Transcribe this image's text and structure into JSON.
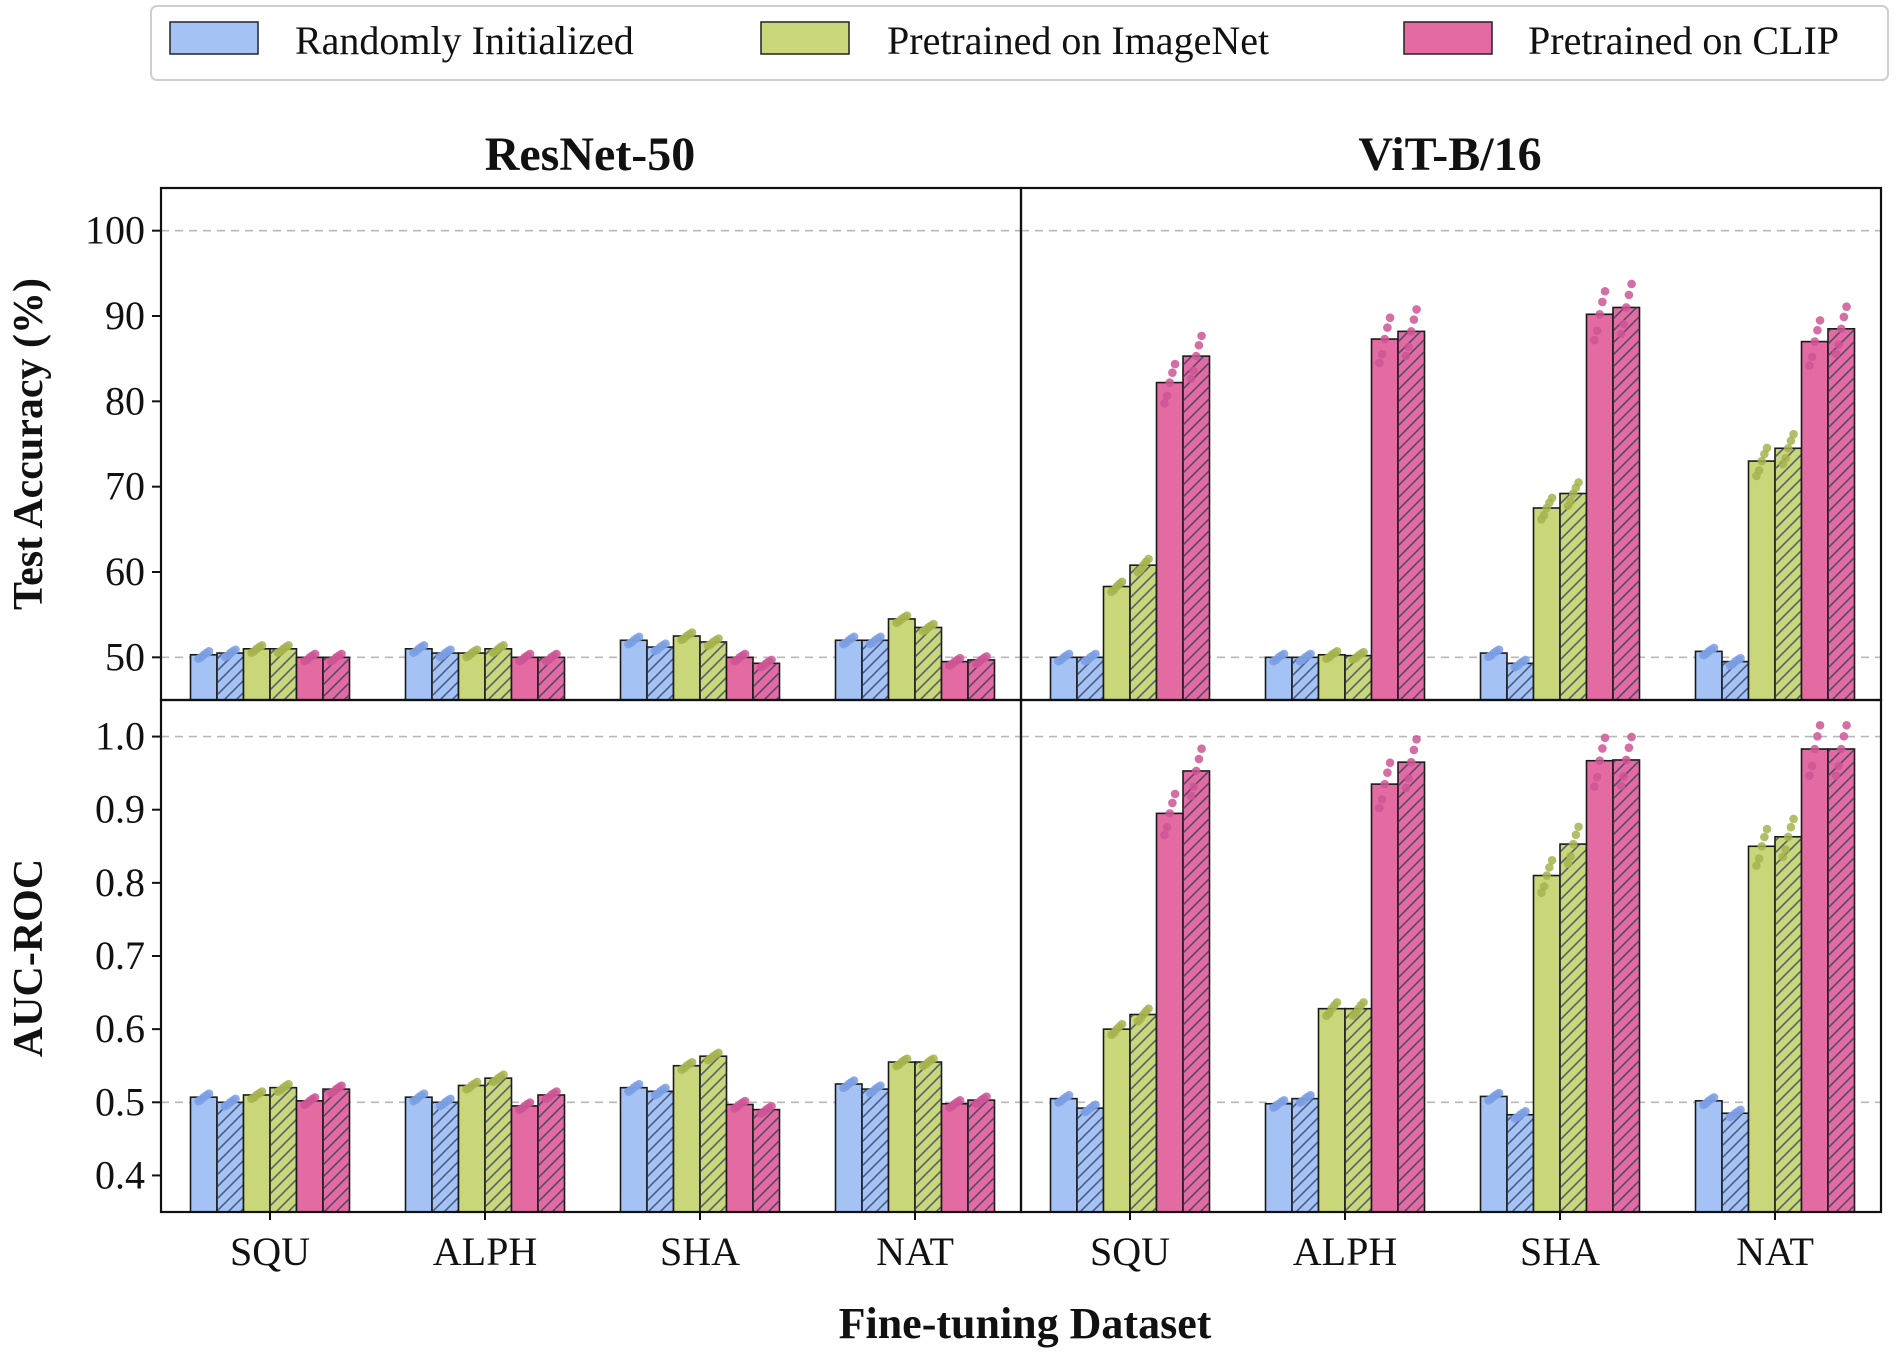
{
  "chart_data": {
    "type": "bar",
    "xlabel": "Fine-tuning Dataset",
    "categories": [
      "SQU",
      "ALPH",
      "SHA",
      "NAT"
    ],
    "legend": [
      {
        "name": "Randomly Initialized",
        "color": "#a4c2f4"
      },
      {
        "name": "Pretrained on ImageNet",
        "color": "#c9d67a"
      },
      {
        "name": "Pretrained on CLIP",
        "color": "#e46ba2"
      }
    ],
    "dot_colors": [
      "#7b9ee3",
      "#a6b34e",
      "#cc5595"
    ],
    "models": [
      "ResNet-50",
      "ViT-B/16"
    ],
    "metrics": [
      {
        "key": "acc",
        "ylabel": "Test Accuracy (%)",
        "ylim": [
          45,
          105
        ],
        "ticks": [
          50,
          60,
          70,
          80,
          90,
          100
        ],
        "tick_labels": [
          "50",
          "60",
          "70",
          "80",
          "90",
          "100"
        ],
        "ref_lines": [
          50,
          100
        ]
      },
      {
        "key": "auc",
        "ylabel": "AUC-ROC",
        "ylim": [
          0.35,
          1.05
        ],
        "ticks": [
          0.4,
          0.5,
          0.6,
          0.7,
          0.8,
          0.9,
          1.0
        ],
        "tick_labels": [
          "0.4",
          "0.5",
          "0.6",
          "0.7",
          "0.8",
          "0.9",
          "1.0"
        ],
        "ref_lines": [
          0.5,
          1.0
        ]
      }
    ],
    "note": "Each dataset has 6 bars: for each pretraining, a solid bar and a hatched bar. Values in data units.",
    "panels": {
      "ResNet-50": {
        "acc": {
          "SQU": [
            50.3,
            50.5,
            51.0,
            51.0,
            50.0,
            50.0
          ],
          "ALPH": [
            51.0,
            50.5,
            50.5,
            51.0,
            50.0,
            50.0
          ],
          "SHA": [
            52.0,
            51.2,
            52.5,
            51.8,
            50.0,
            49.3
          ],
          "NAT": [
            52.0,
            52.0,
            54.5,
            53.5,
            49.5,
            49.7
          ]
        },
        "auc": {
          "SQU": [
            0.507,
            0.5,
            0.51,
            0.52,
            0.502,
            0.518
          ],
          "ALPH": [
            0.507,
            0.5,
            0.523,
            0.533,
            0.495,
            0.51
          ],
          "SHA": [
            0.52,
            0.515,
            0.55,
            0.563,
            0.497,
            0.49
          ],
          "NAT": [
            0.525,
            0.518,
            0.555,
            0.555,
            0.498,
            0.503
          ]
        }
      },
      "ViT-B/16": {
        "acc": {
          "SQU": [
            50.0,
            50.0,
            58.3,
            60.8,
            82.2,
            85.3
          ],
          "ALPH": [
            50.0,
            50.0,
            50.3,
            50.2,
            87.3,
            88.2
          ],
          "SHA": [
            50.5,
            49.3,
            67.5,
            69.2,
            90.2,
            91.0
          ],
          "NAT": [
            50.7,
            49.5,
            73.0,
            74.5,
            87.0,
            88.5
          ]
        },
        "auc": {
          "SQU": [
            0.505,
            0.492,
            0.6,
            0.62,
            0.895,
            0.953
          ],
          "ALPH": [
            0.498,
            0.505,
            0.628,
            0.628,
            0.935,
            0.965
          ],
          "SHA": [
            0.508,
            0.483,
            0.81,
            0.853,
            0.967,
            0.968
          ],
          "NAT": [
            0.502,
            0.485,
            0.85,
            0.863,
            0.983,
            0.983
          ]
        }
      }
    }
  }
}
